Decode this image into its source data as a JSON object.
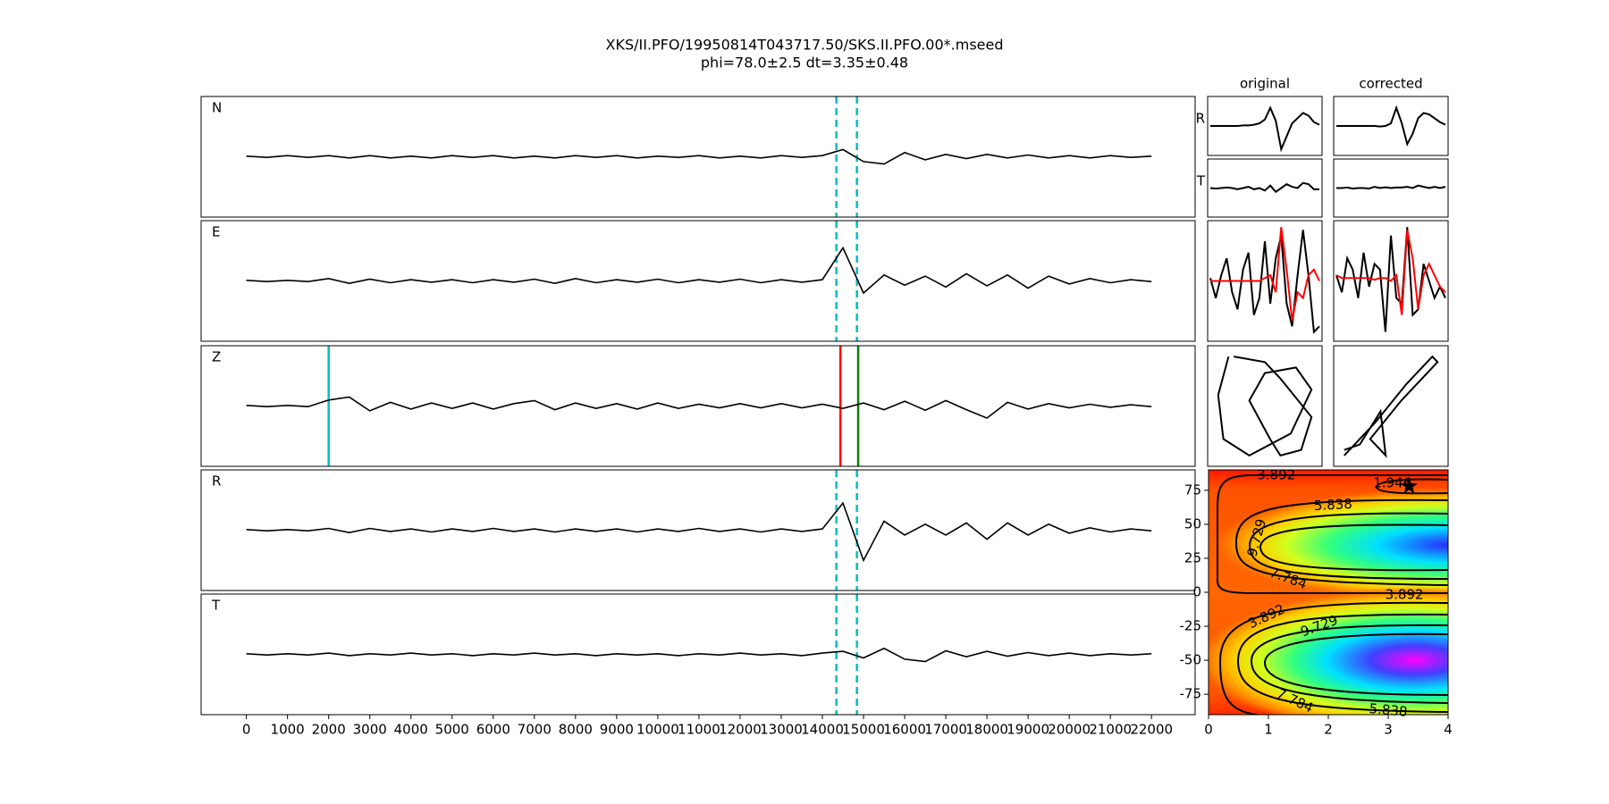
{
  "chart_data": [
    {
      "type": "line",
      "title": "XKS/II.PFO/19950814T043717.50/SKS.II.PFO.00*.mseed",
      "subtitle": "phi=78.0±2.5 dt=3.35±0.48",
      "x": [
        0,
        500,
        1000,
        1500,
        2000,
        2500,
        3000,
        3500,
        4000,
        4500,
        5000,
        5500,
        6000,
        6500,
        7000,
        7500,
        8000,
        8500,
        9000,
        9500,
        10000,
        10500,
        11000,
        11500,
        12000,
        12500,
        13000,
        13500,
        14000,
        14500,
        15000,
        15500,
        16000,
        16500,
        17000,
        17500,
        18000,
        18500,
        19000,
        19500,
        20000,
        20500,
        21000,
        21500,
        22000
      ],
      "xlim": [
        -1100,
        23060
      ],
      "xticks": [
        0,
        1000,
        2000,
        3000,
        4000,
        5000,
        6000,
        7000,
        8000,
        9000,
        10000,
        11000,
        12000,
        13000,
        14000,
        15000,
        16000,
        17000,
        18000,
        19000,
        20000,
        21000,
        22000
      ],
      "ylim": [
        -1,
        1
      ],
      "series": [
        {
          "name": "N",
          "color": "#000000",
          "values": [
            0.01,
            -0.01,
            0.02,
            -0.01,
            0.02,
            -0.02,
            0.02,
            -0.02,
            0.01,
            -0.02,
            0.02,
            -0.01,
            0.02,
            -0.02,
            0.01,
            -0.02,
            0.02,
            -0.01,
            0.02,
            -0.02,
            0.01,
            -0.01,
            0.02,
            -0.02,
            0.01,
            -0.02,
            0.02,
            -0.01,
            0.02,
            0.12,
            -0.08,
            -0.12,
            0.07,
            -0.05,
            0.04,
            -0.03,
            0.04,
            -0.02,
            0.03,
            -0.02,
            0.02,
            -0.02,
            0.02,
            -0.01,
            0.01
          ]
        },
        {
          "name": "E",
          "color": "#000000",
          "values": [
            0.01,
            -0.01,
            0.01,
            -0.01,
            0.04,
            -0.04,
            0.03,
            -0.03,
            0.02,
            -0.02,
            0.02,
            -0.03,
            0.02,
            -0.02,
            0.03,
            -0.04,
            0.04,
            -0.03,
            0.02,
            -0.02,
            0.03,
            -0.03,
            0.02,
            -0.02,
            0.03,
            -0.03,
            0.02,
            -0.02,
            0.02,
            0.55,
            -0.2,
            0.1,
            -0.07,
            0.08,
            -0.1,
            0.12,
            -0.08,
            0.1,
            -0.12,
            0.08,
            -0.05,
            0.04,
            -0.03,
            0.02,
            -0.01
          ]
        },
        {
          "name": "Z",
          "color": "#000000",
          "values": [
            0.01,
            -0.01,
            0.01,
            -0.01,
            0.1,
            0.15,
            -0.08,
            0.06,
            -0.05,
            0.05,
            -0.04,
            0.05,
            -0.05,
            0.04,
            0.09,
            -0.06,
            0.05,
            -0.04,
            0.04,
            -0.05,
            0.05,
            -0.04,
            0.03,
            -0.03,
            0.04,
            -0.03,
            0.04,
            -0.03,
            0.03,
            -0.04,
            0.05,
            -0.06,
            0.08,
            -0.07,
            0.09,
            -0.06,
            -0.2,
            0.06,
            -0.05,
            0.04,
            -0.03,
            0.03,
            -0.02,
            0.02,
            -0.01
          ]
        },
        {
          "name": "R",
          "color": "#000000",
          "values": [
            0.01,
            -0.01,
            0.01,
            -0.01,
            0.03,
            -0.04,
            0.03,
            -0.02,
            0.02,
            -0.03,
            0.02,
            -0.02,
            0.03,
            -0.02,
            0.02,
            -0.03,
            0.02,
            -0.02,
            0.02,
            -0.03,
            0.02,
            -0.02,
            0.03,
            -0.02,
            0.02,
            -0.03,
            0.02,
            -0.02,
            0.02,
            0.45,
            -0.5,
            0.15,
            -0.08,
            0.1,
            -0.08,
            0.12,
            -0.15,
            0.12,
            -0.08,
            0.1,
            -0.05,
            0.04,
            -0.03,
            0.02,
            -0.01
          ]
        },
        {
          "name": "T",
          "color": "#000000",
          "values": [
            0.01,
            -0.01,
            0.01,
            -0.01,
            0.02,
            -0.02,
            0.01,
            -0.01,
            0.02,
            -0.01,
            0.01,
            -0.02,
            0.01,
            -0.01,
            0.02,
            -0.01,
            0.01,
            -0.02,
            0.01,
            -0.01,
            0.01,
            -0.02,
            0.01,
            -0.01,
            0.02,
            -0.01,
            0.01,
            -0.02,
            0.02,
            0.05,
            -0.06,
            0.1,
            -0.08,
            -0.12,
            0.06,
            -0.04,
            0.05,
            -0.03,
            0.03,
            -0.02,
            0.02,
            -0.02,
            0.01,
            -0.01,
            0.01
          ]
        }
      ],
      "window": {
        "values": [
          14340,
          14840
        ],
        "color": "#00bfbf"
      },
      "picks": [
        {
          "value": 2000,
          "color": "#00bfbf"
        },
        {
          "value": 14440,
          "color": "#ff0000"
        },
        {
          "value": 14870,
          "color": "#008000"
        }
      ]
    },
    {
      "type": "line",
      "title": "original",
      "x": [
        0,
        1,
        2,
        3,
        4,
        5,
        6,
        7,
        8,
        9,
        10,
        11,
        12,
        13,
        14,
        15,
        16,
        17,
        18,
        19,
        20
      ],
      "xlim": [
        0,
        20
      ],
      "ylim": [
        -1,
        1
      ],
      "series": [
        {
          "name": "R",
          "color": "#000000",
          "values": [
            0,
            0,
            0,
            0,
            0,
            0,
            0.02,
            0.02,
            0.05,
            0.1,
            0.25,
            0.7,
            0.2,
            -0.9,
            -0.4,
            0.1,
            0.3,
            0.5,
            0.4,
            0.15,
            0.05
          ]
        },
        {
          "name": "T",
          "color": "#000000",
          "values": [
            0,
            -0.02,
            0,
            0.02,
            0,
            -0.05,
            0,
            0.05,
            -0.05,
            0,
            -0.1,
            0.1,
            -0.15,
            0,
            0.15,
            0.05,
            0,
            0.2,
            0.15,
            -0.05,
            -0.05
          ]
        }
      ],
      "traces": [
        {
          "color": "#000000",
          "values": [
            0.05,
            -0.3,
            0.1,
            0.4,
            -0.2,
            -0.5,
            0.2,
            0.5,
            -0.6,
            -0.3,
            0.7,
            -0.4,
            0.4,
            0.8,
            -0.4,
            -0.8,
            0.1,
            0.9,
            0.1,
            -0.9,
            -0.8
          ]
        },
        {
          "color": "#ff0000",
          "values": [
            0,
            0,
            0,
            0,
            0,
            0,
            0,
            0,
            0,
            0,
            0.05,
            0.1,
            -0.2,
            0.95,
            0.2,
            -0.7,
            -0.2,
            -0.3,
            0.1,
            0.2,
            0
          ]
        }
      ],
      "particle": {
        "color": "#000000",
        "x": [
          -0.6,
          0.0,
          0.3,
          0.9,
          0.7,
          0.3,
          0.1,
          -0.3,
          0.0,
          0.6,
          0.9,
          0.5,
          -0.3,
          -0.8,
          -0.9,
          -0.7
        ],
        "y": [
          0.9,
          0.8,
          0.5,
          -0.2,
          -0.8,
          -0.9,
          -0.6,
          0.1,
          0.6,
          0.7,
          0.3,
          -0.5,
          -0.9,
          -0.6,
          0.2,
          0.9
        ]
      }
    },
    {
      "type": "line",
      "title": "corrected",
      "x": [
        0,
        1,
        2,
        3,
        4,
        5,
        6,
        7,
        8,
        9,
        10,
        11,
        12,
        13,
        14,
        15,
        16,
        17,
        18,
        19,
        20
      ],
      "xlim": [
        0,
        20
      ],
      "ylim": [
        -1,
        1
      ],
      "series": [
        {
          "color": "#000000",
          "values": [
            0,
            0,
            0,
            0,
            0,
            0,
            0,
            0,
            -0.02,
            0,
            0.1,
            0.7,
            0.1,
            -0.7,
            -0.3,
            0.3,
            0.5,
            0.45,
            0.3,
            0.15,
            0.05
          ]
        },
        {
          "color": "#000000",
          "values": [
            0,
            0,
            0.02,
            -0.02,
            0,
            0,
            -0.02,
            0.05,
            0,
            0.03,
            0,
            0.02,
            0.02,
            0.05,
            0,
            0.1,
            0.05,
            0,
            0.05,
            0,
            0.05
          ]
        }
      ],
      "traces": [
        {
          "color": "#000000",
          "values": [
            0.1,
            -0.2,
            0.4,
            0.2,
            -0.3,
            0.5,
            -0.1,
            0.3,
            0.2,
            -0.9,
            0.8,
            -0.3,
            -0.4,
            0.95,
            -0.6,
            -0.5,
            0.3,
            0,
            -0.3,
            -0.1,
            -0.3
          ]
        },
        {
          "color": "#ff0000",
          "values": [
            0.1,
            0.05,
            0.05,
            0.05,
            0.05,
            0.05,
            0.05,
            0.02,
            0.05,
            0.05,
            0,
            0.1,
            -0.6,
            0.9,
            0.4,
            -0.5,
            0.1,
            0.3,
            0.1,
            -0.1,
            -0.2
          ]
        }
      ],
      "particle": {
        "color": "#000000",
        "x": [
          -0.9,
          -0.3,
          0.3,
          0.8,
          0.9,
          0.2,
          -0.4,
          -0.1,
          -0.2,
          -0.6,
          -0.9
        ],
        "y": [
          -0.9,
          -0.3,
          0.4,
          0.9,
          0.8,
          0.1,
          -0.6,
          -0.9,
          -0.1,
          -0.7,
          -0.8
        ]
      }
    },
    {
      "type": "contour",
      "xlim": [
        0,
        4
      ],
      "xticks": [
        0,
        1,
        2,
        3,
        4
      ],
      "ylim": [
        -90,
        90
      ],
      "yticks": [
        -75,
        -50,
        -25,
        0,
        25,
        50,
        75
      ],
      "labels": [
        {
          "value": 3.892,
          "x": 1.13,
          "y": 86
        },
        {
          "value": 1.946,
          "x": 3.07,
          "y": 80
        },
        {
          "value": 5.838,
          "x": 2.08,
          "y": 64
        },
        {
          "value": 9.729,
          "x": 0.81,
          "y": 40
        },
        {
          "value": 7.784,
          "x": 1.33,
          "y": 10
        },
        {
          "value": 3.892,
          "x": 3.27,
          "y": -2
        },
        {
          "value": 3.892,
          "x": 0.97,
          "y": -18
        },
        {
          "value": 9.729,
          "x": 1.85,
          "y": -25
        },
        {
          "value": 7.784,
          "x": 1.44,
          "y": -80
        },
        {
          "value": 5.838,
          "x": 3.0,
          "y": -87
        }
      ],
      "star": {
        "x": 3.35,
        "y": 78.0,
        "color": "#000000"
      }
    }
  ]
}
